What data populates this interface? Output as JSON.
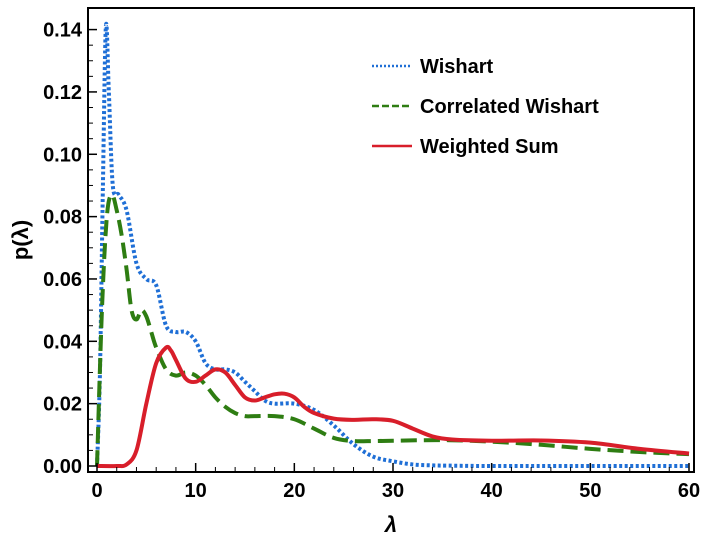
{
  "chart_data": {
    "type": "line",
    "title": "",
    "xlabel": "λ",
    "ylabel": "p(λ)",
    "xlim": [
      0,
      60
    ],
    "ylim": [
      0,
      0.145
    ],
    "x_ticks": [
      0,
      10,
      20,
      30,
      40,
      50,
      60
    ],
    "x_tick_labels": [
      "0",
      "10",
      "20",
      "30",
      "40",
      "50",
      "60"
    ],
    "y_ticks": [
      0,
      0.02,
      0.04,
      0.06,
      0.08,
      0.1,
      0.12,
      0.14
    ],
    "y_tick_labels": [
      "0.00",
      "0.02",
      "0.04",
      "0.06",
      "0.08",
      "0.10",
      "0.12",
      "0.14"
    ],
    "grid": false,
    "legend_position": "top-right",
    "series": [
      {
        "name": "Wishart",
        "color": "#1f6fd6",
        "style": "dotted",
        "x": [
          0,
          0.3,
          0.6,
          0.9,
          1.2,
          1.6,
          2.2,
          3.0,
          4.0,
          5.0,
          6.0,
          7.0,
          8.0,
          9.0,
          10.0,
          11.0,
          12.0,
          13.0,
          14.0,
          15.0,
          16.0,
          17.0,
          18.0,
          20.0,
          22.0,
          24.0,
          26.0,
          28.0,
          30.0,
          32.0,
          34.0,
          36.0,
          40.0,
          50.0,
          60.0
        ],
        "y": [
          0,
          0.03,
          0.09,
          0.141,
          0.12,
          0.09,
          0.087,
          0.082,
          0.065,
          0.06,
          0.058,
          0.045,
          0.043,
          0.043,
          0.04,
          0.033,
          0.031,
          0.031,
          0.03,
          0.027,
          0.024,
          0.021,
          0.02,
          0.02,
          0.018,
          0.013,
          0.007,
          0.003,
          0.0015,
          0.0005,
          0.0002,
          0.0001,
          0,
          0,
          0
        ]
      },
      {
        "name": "Correlated Wishart",
        "color": "#2e7d12",
        "style": "dashed",
        "x": [
          0,
          0.5,
          1.0,
          1.5,
          2.0,
          2.5,
          3.0,
          3.5,
          4.0,
          4.5,
          5.0,
          5.5,
          6.0,
          7.0,
          8.0,
          9.0,
          10.0,
          11.0,
          12.0,
          13.0,
          14.0,
          15.0,
          16.0,
          18.0,
          20.0,
          22.0,
          24.0,
          26.0,
          28.0,
          30.0,
          35.0,
          40.0,
          45.0,
          50.0,
          55.0,
          60.0
        ],
        "y": [
          0,
          0.05,
          0.08,
          0.087,
          0.082,
          0.074,
          0.063,
          0.05,
          0.047,
          0.05,
          0.048,
          0.043,
          0.038,
          0.031,
          0.029,
          0.03,
          0.029,
          0.026,
          0.022,
          0.019,
          0.017,
          0.016,
          0.016,
          0.016,
          0.015,
          0.012,
          0.009,
          0.008,
          0.008,
          0.0081,
          0.0083,
          0.0078,
          0.0068,
          0.0055,
          0.0045,
          0.0038
        ]
      },
      {
        "name": "Weighted Sum",
        "color": "#d81e2a",
        "style": "solid",
        "x": [
          0,
          2.0,
          3.0,
          4.0,
          5.0,
          6.0,
          7.0,
          7.5,
          8.0,
          9.0,
          10.0,
          11.0,
          12.0,
          13.0,
          14.0,
          15.0,
          16.0,
          17.0,
          18.0,
          19.0,
          20.0,
          21.0,
          22.0,
          24.0,
          26.0,
          28.0,
          30.0,
          32.0,
          34.0,
          36.0,
          40.0,
          45.0,
          50.0,
          55.0,
          60.0
        ],
        "y": [
          0,
          0,
          0.0005,
          0.005,
          0.02,
          0.033,
          0.038,
          0.037,
          0.034,
          0.028,
          0.027,
          0.029,
          0.031,
          0.03,
          0.026,
          0.022,
          0.021,
          0.022,
          0.023,
          0.0232,
          0.022,
          0.019,
          0.017,
          0.0152,
          0.0148,
          0.015,
          0.0145,
          0.012,
          0.0095,
          0.0085,
          0.0081,
          0.0082,
          0.0075,
          0.0055,
          0.004
        ]
      }
    ]
  }
}
